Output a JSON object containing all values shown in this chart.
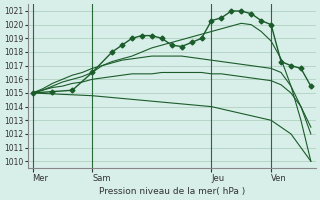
{
  "background_color": "#d8eee8",
  "grid_color": "#aaccbb",
  "line_color": "#1a5c2a",
  "title": "Pression niveau de la mer( hPa )",
  "ylim": [
    1009.5,
    1021.5
  ],
  "yticks": [
    1010,
    1011,
    1012,
    1013,
    1014,
    1015,
    1016,
    1017,
    1018,
    1019,
    1020,
    1021
  ],
  "day_labels": [
    "Mer",
    "Sam",
    "Jeu",
    "Ven"
  ],
  "day_positions": [
    0,
    6,
    18,
    24
  ],
  "series1_x": [
    0,
    1,
    2,
    3,
    4,
    5,
    6,
    7,
    8,
    9,
    10,
    11,
    12,
    13,
    14,
    15,
    16,
    17,
    18,
    19,
    20,
    21,
    22,
    23,
    24,
    25,
    26,
    27,
    28
  ],
  "series1_y": [
    1015.0,
    1015.2,
    1015.5,
    1015.8,
    1016.0,
    1016.2,
    1016.5,
    1017.0,
    1017.3,
    1017.5,
    1017.7,
    1018.0,
    1018.3,
    1018.5,
    1018.7,
    1018.9,
    1019.1,
    1019.3,
    1019.5,
    1019.7,
    1019.9,
    1020.1,
    1020.0,
    1019.5,
    1018.8,
    1017.5,
    1015.5,
    1013.0,
    1010.0
  ],
  "series2_x": [
    0,
    1,
    2,
    3,
    4,
    5,
    6,
    7,
    8,
    9,
    10,
    11,
    12,
    13,
    14,
    15,
    16,
    17,
    18,
    19,
    20,
    21,
    22,
    23,
    24,
    25,
    26,
    27,
    28
  ],
  "series2_y": [
    1015.0,
    1015.3,
    1015.7,
    1016.0,
    1016.3,
    1016.5,
    1016.8,
    1017.0,
    1017.2,
    1017.4,
    1017.5,
    1017.6,
    1017.7,
    1017.7,
    1017.7,
    1017.7,
    1017.6,
    1017.5,
    1017.4,
    1017.3,
    1017.2,
    1017.1,
    1017.0,
    1016.9,
    1016.8,
    1016.5,
    1015.5,
    1014.0,
    1012.0
  ],
  "series3_x": [
    0,
    1,
    2,
    3,
    4,
    5,
    6,
    7,
    8,
    9,
    10,
    11,
    12,
    13,
    14,
    15,
    16,
    17,
    18,
    19,
    20,
    21,
    22,
    23,
    24,
    25,
    26,
    27,
    28
  ],
  "series3_y": [
    1015.0,
    1015.2,
    1015.4,
    1015.5,
    1015.7,
    1015.8,
    1016.0,
    1016.1,
    1016.2,
    1016.3,
    1016.4,
    1016.4,
    1016.4,
    1016.5,
    1016.5,
    1016.5,
    1016.5,
    1016.5,
    1016.4,
    1016.4,
    1016.3,
    1016.2,
    1016.1,
    1016.0,
    1015.9,
    1015.6,
    1015.0,
    1014.0,
    1012.5
  ],
  "series4_x": [
    0,
    2,
    4,
    6,
    8,
    9,
    10,
    11,
    12,
    13,
    14,
    15,
    16,
    17,
    18,
    19,
    20,
    21,
    22,
    23,
    24,
    25,
    26,
    27,
    28
  ],
  "series4_y": [
    1015.0,
    1015.1,
    1015.2,
    1016.5,
    1018.0,
    1018.5,
    1019.0,
    1019.2,
    1019.2,
    1019.0,
    1018.5,
    1018.4,
    1018.7,
    1019.0,
    1020.3,
    1020.5,
    1021.0,
    1021.0,
    1020.8,
    1020.3,
    1020.0,
    1017.3,
    1017.0,
    1016.8,
    1015.5
  ],
  "series5_x": [
    0,
    3,
    6,
    9,
    12,
    15,
    18,
    21,
    24,
    25,
    26,
    27,
    28
  ],
  "series5_y": [
    1015.0,
    1014.9,
    1014.8,
    1014.6,
    1014.4,
    1014.2,
    1014.0,
    1013.5,
    1013.0,
    1012.5,
    1012.0,
    1011.0,
    1010.0
  ]
}
